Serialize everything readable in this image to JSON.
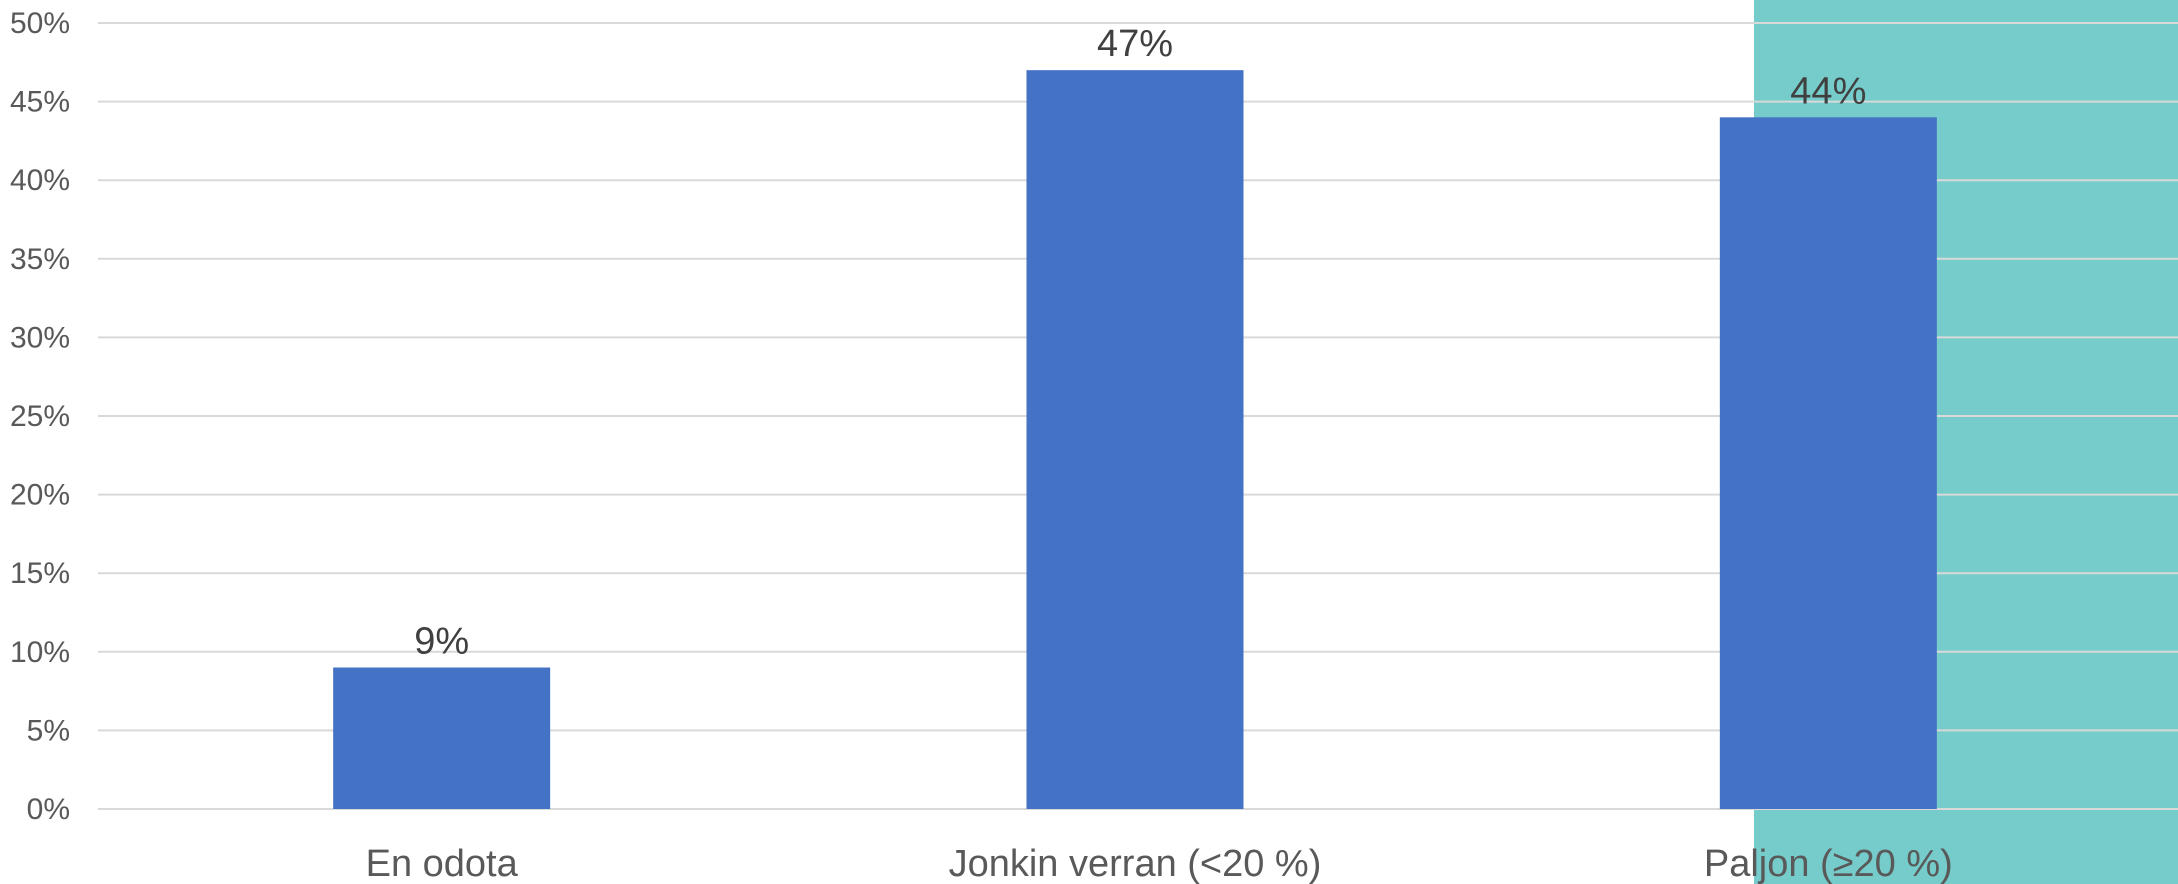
{
  "chart_data": {
    "type": "bar",
    "title": "",
    "xlabel": "",
    "ylabel": "",
    "categories": [
      "En odota",
      "Jonkin verran (<20 %)",
      "Paljon (≥20 %)"
    ],
    "values": [
      9,
      47,
      44
    ],
    "data_labels": [
      "9%",
      "47%",
      "44%"
    ],
    "ylim": [
      0,
      50
    ],
    "yticks": [
      0,
      5,
      10,
      15,
      20,
      25,
      30,
      35,
      40,
      45,
      50
    ],
    "ytick_labels": [
      "0%",
      "5%",
      "10%",
      "15%",
      "20%",
      "25%",
      "30%",
      "35%",
      "40%",
      "45%",
      "50%"
    ],
    "grid": true,
    "legend": "none",
    "highlighted_category": "Paljon (≥20 %)",
    "colors": {
      "bar": "#4472C4",
      "highlight_background": "#76CCCB",
      "grid": "#D9D9D9",
      "tick_text": "#595959",
      "data_label_text": "#404040"
    }
  }
}
